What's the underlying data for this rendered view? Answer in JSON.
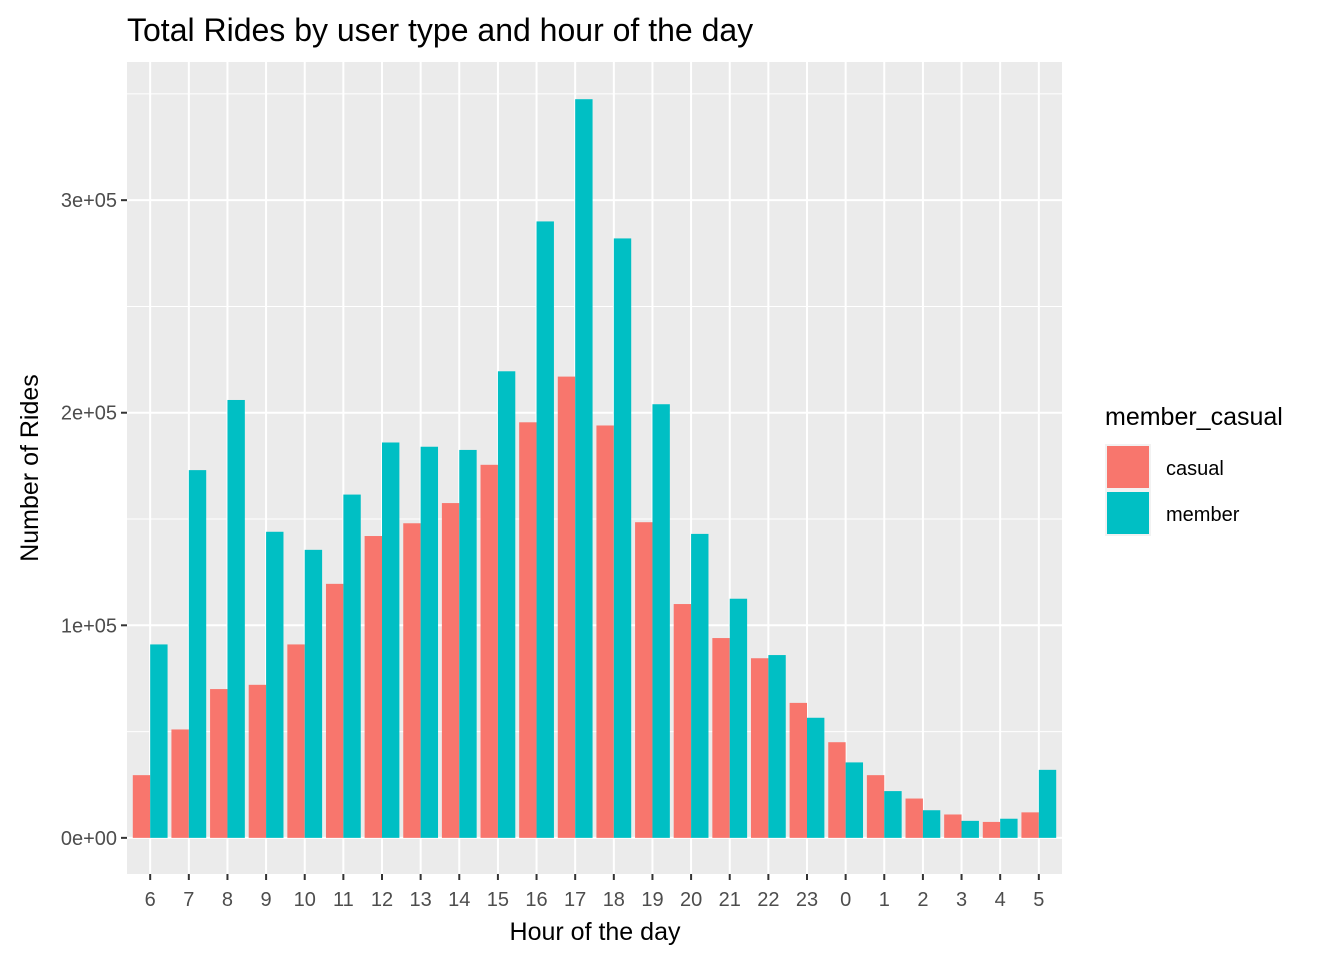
{
  "chart_data": {
    "type": "bar",
    "title": "Total Rides by user type and hour of the day",
    "xlabel": "Hour of the day",
    "ylabel": "Number of Rides",
    "categories": [
      "6",
      "7",
      "8",
      "9",
      "10",
      "11",
      "12",
      "13",
      "14",
      "15",
      "16",
      "17",
      "18",
      "19",
      "20",
      "21",
      "22",
      "23",
      "0",
      "1",
      "2",
      "3",
      "4",
      "5"
    ],
    "series": [
      {
        "name": "casual",
        "color": "#F8766D",
        "values": [
          29500,
          51000,
          70000,
          72000,
          91000,
          119500,
          142000,
          148000,
          157500,
          175500,
          195500,
          217000,
          194000,
          148500,
          110000,
          94000,
          84500,
          63500,
          45000,
          29500,
          18500,
          11000,
          7500,
          12000
        ]
      },
      {
        "name": "member",
        "color": "#00BFC4",
        "values": [
          91000,
          173000,
          206000,
          144000,
          135500,
          161500,
          186000,
          184000,
          182500,
          219500,
          290000,
          347500,
          282000,
          204000,
          143000,
          112500,
          86000,
          56500,
          35500,
          22000,
          13000,
          8000,
          9000,
          32000
        ]
      }
    ],
    "ylim": [
      -17000,
      365000
    ],
    "yticks": [
      {
        "value": 0,
        "label": "0e+00"
      },
      {
        "value": 100000,
        "label": "1e+05"
      },
      {
        "value": 200000,
        "label": "2e+05"
      },
      {
        "value": 300000,
        "label": "3e+05"
      }
    ],
    "grid": true,
    "background": "#EBEBEB",
    "grid_color": "#FFFFFF",
    "legend": {
      "title": "member_casual",
      "position": "right",
      "items": [
        "casual",
        "member"
      ]
    }
  }
}
